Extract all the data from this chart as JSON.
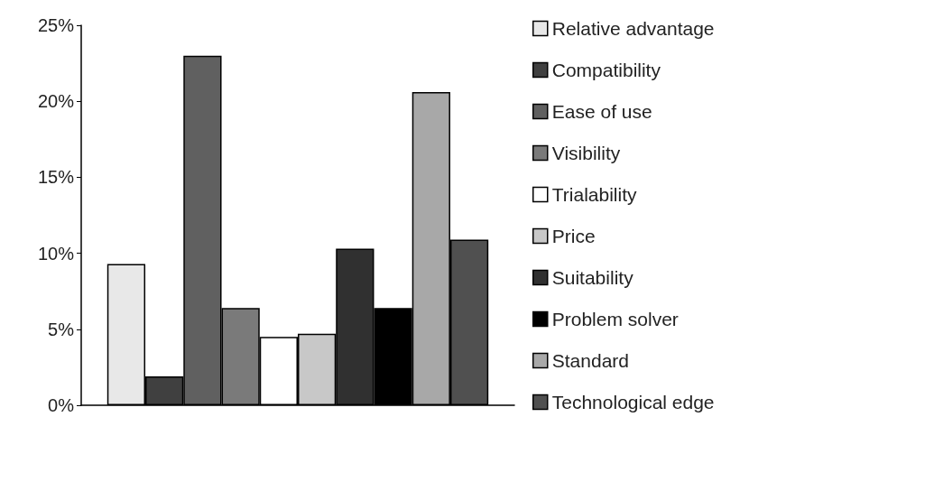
{
  "chart_data": {
    "type": "bar",
    "categories": [
      null
    ],
    "ylim": [
      0,
      25
    ],
    "yticks": [
      {
        "value": 0,
        "label": "0%"
      },
      {
        "value": 5,
        "label": "5%"
      },
      {
        "value": 10,
        "label": "10%"
      },
      {
        "value": 15,
        "label": "15%"
      },
      {
        "value": 20,
        "label": "20%"
      },
      {
        "value": 25,
        "label": "25%"
      }
    ],
    "grid": false,
    "legend": "right",
    "series": [
      {
        "name": "Relative advantage",
        "color": "#e8e8e8",
        "values": [
          9.3
        ]
      },
      {
        "name": "Compatibility",
        "color": "#404040",
        "values": [
          1.9
        ]
      },
      {
        "name": "Ease of use",
        "color": "#606060",
        "values": [
          23.0
        ]
      },
      {
        "name": "Visibility",
        "color": "#7a7a7a",
        "values": [
          6.4
        ]
      },
      {
        "name": "Trialability",
        "color": "#ffffff",
        "values": [
          4.5
        ]
      },
      {
        "name": "Price",
        "color": "#c8c8c8",
        "values": [
          4.7
        ]
      },
      {
        "name": "Suitability",
        "color": "#303030",
        "values": [
          10.3
        ]
      },
      {
        "name": "Problem solver",
        "color": "#000000",
        "values": [
          6.4
        ]
      },
      {
        "name": "Standard",
        "color": "#a8a8a8",
        "values": [
          20.6
        ]
      },
      {
        "name": "Technological edge",
        "color": "#505050",
        "values": [
          10.9
        ]
      }
    ]
  }
}
